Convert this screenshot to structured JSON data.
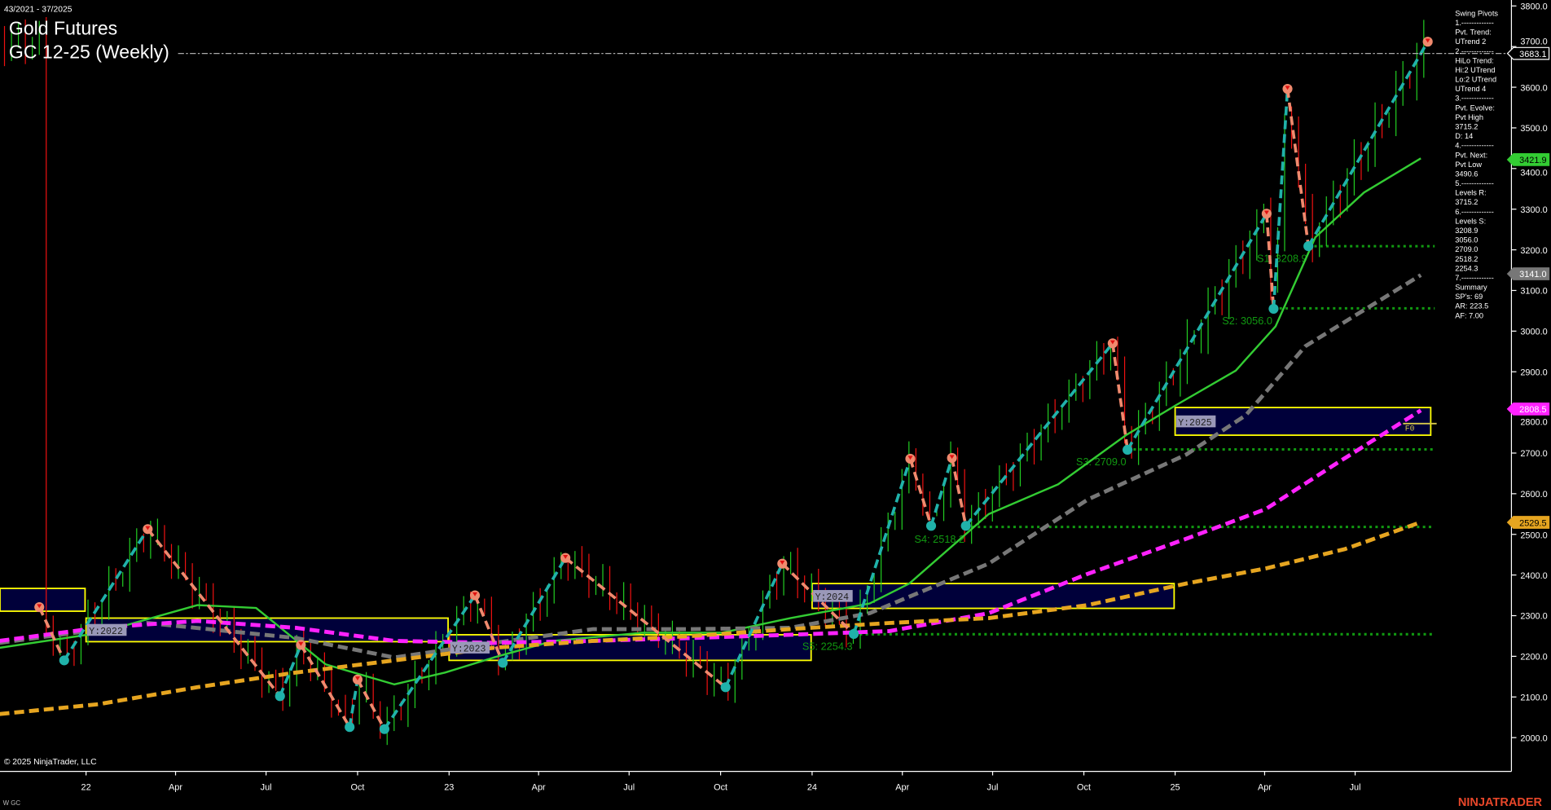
{
  "header": {
    "date_range": "43/2021 - 37/2025",
    "title": "Gold Futures",
    "subtitle": "GC 12-25 (Weekly)"
  },
  "footer": {
    "copyright": "© 2025 NinjaTrader, LLC",
    "instrument_tag": "W GC",
    "logo": "NINJATRADER"
  },
  "swing_panel": [
    "Swing Pivots",
    "1.-------------",
    "Pvt. Trend:",
    "UTrend 2",
    "2.-------------",
    "HiLo Trend:",
    "Hi:2 UTrend",
    "Lo:2 UTrend",
    "UTrend 4",
    "3.-------------",
    "Pvt. Evolve:",
    "Pvt High",
    "3715.2",
    "D: 14",
    "4.-------------",
    "Pvt. Next:",
    "Pvt Low",
    "3490.6",
    "5.-------------",
    "Levels R:",
    "3715.2",
    "6.-------------",
    "Levels S:",
    "3208.9",
    "3056.0",
    "2709.0",
    "2518.2",
    "2254.3",
    "7.-------------",
    "Summary",
    "SP's: 69",
    "AR: 223.5",
    "AF: 7.00"
  ],
  "colors": {
    "background": "#000000",
    "up_bar": "#22cc22",
    "down_bar": "#ee1111",
    "swing_up": "#20b2aa",
    "swing_down": "#f08a6e",
    "ma_fast": "#33cc33",
    "ma_mid": "#777777",
    "ma_slow": "#ff22ff",
    "ma_long": "#e6a520",
    "support": "#119911",
    "year_box_border": "#ffff00",
    "year_box_fill": "#000044",
    "logo": "#e8472a"
  },
  "chart_data": {
    "type": "candlestick",
    "ylim": [
      1920,
      3830
    ],
    "y_ticks": [
      3800,
      3700,
      3600,
      3500,
      3400,
      3300,
      3200,
      3100,
      3000,
      2900,
      2800,
      2700,
      2600,
      2500,
      2400,
      2300,
      2200,
      2100,
      2000
    ],
    "y_tick_labels": [
      "3800.0",
      "3700.0",
      "3600.0",
      "3500.0",
      "3400.0",
      "3300.0",
      "3200.0",
      "3100.0",
      "3000.0",
      "2900.0",
      "2800.0",
      "2700.0",
      "2600.0",
      "2500.0",
      "2400.0",
      "2300.0",
      "2200.0",
      "2100.0",
      "2000.0"
    ],
    "x_range": [
      "2021-10-04",
      "2025-10-20"
    ],
    "x_ticks": [
      {
        "date": "2022-01-01",
        "label": "22"
      },
      {
        "date": "2022-04-01",
        "label": "Apr"
      },
      {
        "date": "2022-07-01",
        "label": "Jul"
      },
      {
        "date": "2022-10-01",
        "label": "Oct"
      },
      {
        "date": "2023-01-01",
        "label": "23"
      },
      {
        "date": "2023-04-01",
        "label": "Apr"
      },
      {
        "date": "2023-07-01",
        "label": "Jul"
      },
      {
        "date": "2023-10-01",
        "label": "Oct"
      },
      {
        "date": "2024-01-01",
        "label": "24"
      },
      {
        "date": "2024-04-01",
        "label": "Apr"
      },
      {
        "date": "2024-07-01",
        "label": "Jul"
      },
      {
        "date": "2024-10-01",
        "label": "Oct"
      },
      {
        "date": "2025-01-01",
        "label": "25"
      },
      {
        "date": "2025-04-01",
        "label": "Apr"
      },
      {
        "date": "2025-07-01",
        "label": "Jul"
      }
    ],
    "last_price_line": 3683.1,
    "price_badges": [
      {
        "value": "3683.1",
        "color": "#000000",
        "text_color": "#ffffff",
        "price": 3683.1
      },
      {
        "value": "3421.9",
        "color": "#33cc33",
        "text_color": "#000000",
        "price": 3421.9
      },
      {
        "value": "3141.0",
        "color": "#777777",
        "text_color": "#ffffff",
        "price": 3141.0
      },
      {
        "value": "2808.5",
        "color": "#ff22ff",
        "text_color": "#ffffff",
        "price": 2808.5
      },
      {
        "value": "2529.5",
        "color": "#e6a520",
        "text_color": "#000000",
        "price": 2529.5
      }
    ],
    "swing_pivots": [
      {
        "date": "2021-11-15",
        "price": 2321,
        "type": "high"
      },
      {
        "date": "2021-12-10",
        "price": 2190,
        "type": "low"
      },
      {
        "date": "2022-03-04",
        "price": 2513,
        "type": "high"
      },
      {
        "date": "2022-07-15",
        "price": 2102,
        "type": "low"
      },
      {
        "date": "2022-08-05",
        "price": 2228,
        "type": "high"
      },
      {
        "date": "2022-09-23",
        "price": 2026,
        "type": "low"
      },
      {
        "date": "2022-10-01",
        "price": 2143,
        "type": "high"
      },
      {
        "date": "2022-10-28",
        "price": 2021,
        "type": "low"
      },
      {
        "date": "2023-01-27",
        "price": 2350,
        "type": "high"
      },
      {
        "date": "2023-02-24",
        "price": 2184,
        "type": "low"
      },
      {
        "date": "2023-04-28",
        "price": 2442,
        "type": "high"
      },
      {
        "date": "2023-10-06",
        "price": 2124,
        "type": "low"
      },
      {
        "date": "2023-12-02",
        "price": 2428,
        "type": "high"
      },
      {
        "date": "2024-02-12",
        "price": 2255,
        "type": "low"
      },
      {
        "date": "2024-04-09",
        "price": 2686,
        "type": "high"
      },
      {
        "date": "2024-04-30",
        "price": 2521,
        "type": "low"
      },
      {
        "date": "2024-05-21",
        "price": 2688,
        "type": "high"
      },
      {
        "date": "2024-06-04",
        "price": 2521,
        "type": "low"
      },
      {
        "date": "2024-10-30",
        "price": 2970,
        "type": "high"
      },
      {
        "date": "2024-11-14",
        "price": 2708,
        "type": "low"
      },
      {
        "date": "2025-04-03",
        "price": 3289,
        "type": "high"
      },
      {
        "date": "2025-04-10",
        "price": 3055,
        "type": "low"
      },
      {
        "date": "2025-04-24",
        "price": 3596,
        "type": "high"
      },
      {
        "date": "2025-05-15",
        "price": 3209,
        "type": "low"
      },
      {
        "date": "2025-09-12",
        "price": 3712,
        "type": "high"
      }
    ],
    "moving_averages": [
      {
        "key": "fast",
        "color": "#33cc33",
        "style": "solid",
        "points": [
          [
            "2021-10-06",
            2221
          ],
          [
            "2022-01-13",
            2257
          ],
          [
            "2022-04-23",
            2326
          ],
          [
            "2022-06-21",
            2319
          ],
          [
            "2022-08-30",
            2180
          ],
          [
            "2022-11-07",
            2131
          ],
          [
            "2022-12-28",
            2160
          ],
          [
            "2023-02-15",
            2197
          ],
          [
            "2023-04-16",
            2238
          ],
          [
            "2023-07-14",
            2258
          ],
          [
            "2023-10-02",
            2258
          ],
          [
            "2023-12-10",
            2294
          ],
          [
            "2024-02-28",
            2330
          ],
          [
            "2024-04-08",
            2379
          ],
          [
            "2024-06-27",
            2550
          ],
          [
            "2024-09-05",
            2623
          ],
          [
            "2024-11-13",
            2745
          ],
          [
            "2025-01-02",
            2818
          ],
          [
            "2025-03-03",
            2903
          ],
          [
            "2025-04-12",
            3012
          ],
          [
            "2025-05-22",
            3231
          ],
          [
            "2025-07-10",
            3341
          ],
          [
            "2025-09-05",
            3425
          ]
        ]
      },
      {
        "key": "mid",
        "color": "#777777",
        "style": "dashed",
        "points": [
          [
            "2021-10-06",
            2233
          ],
          [
            "2022-03-04",
            2282
          ],
          [
            "2022-07-31",
            2245
          ],
          [
            "2022-11-07",
            2197
          ],
          [
            "2023-02-15",
            2233
          ],
          [
            "2023-05-26",
            2267
          ],
          [
            "2023-09-02",
            2267
          ],
          [
            "2023-12-10",
            2270
          ],
          [
            "2024-02-28",
            2306
          ],
          [
            "2024-06-27",
            2428
          ],
          [
            "2024-10-05",
            2586
          ],
          [
            "2025-01-12",
            2696
          ],
          [
            "2025-03-13",
            2793
          ],
          [
            "2025-05-12",
            2963
          ],
          [
            "2025-09-05",
            3138
          ]
        ]
      },
      {
        "key": "slow",
        "color": "#ff22ff",
        "style": "dashed",
        "points": [
          [
            "2021-10-06",
            2238
          ],
          [
            "2022-01-13",
            2270
          ],
          [
            "2022-04-23",
            2287
          ],
          [
            "2022-07-31",
            2270
          ],
          [
            "2022-11-07",
            2238
          ],
          [
            "2023-02-15",
            2233
          ],
          [
            "2023-05-26",
            2238
          ],
          [
            "2023-09-02",
            2245
          ],
          [
            "2023-12-10",
            2253
          ],
          [
            "2024-03-19",
            2262
          ],
          [
            "2024-06-27",
            2306
          ],
          [
            "2024-10-05",
            2403
          ],
          [
            "2025-01-12",
            2489
          ],
          [
            "2025-04-02",
            2562
          ],
          [
            "2025-06-10",
            2671
          ],
          [
            "2025-09-05",
            2805
          ]
        ]
      },
      {
        "key": "long",
        "color": "#e6a520",
        "style": "dashed",
        "points": [
          [
            "2021-10-06",
            2058
          ],
          [
            "2022-01-13",
            2082
          ],
          [
            "2022-04-23",
            2124
          ],
          [
            "2022-07-31",
            2160
          ],
          [
            "2022-11-07",
            2190
          ],
          [
            "2023-02-15",
            2221
          ],
          [
            "2023-05-26",
            2238
          ],
          [
            "2023-09-02",
            2250
          ],
          [
            "2023-12-10",
            2267
          ],
          [
            "2024-03-19",
            2282
          ],
          [
            "2024-06-27",
            2294
          ],
          [
            "2024-10-05",
            2326
          ],
          [
            "2025-01-12",
            2379
          ],
          [
            "2025-04-02",
            2416
          ],
          [
            "2025-06-21",
            2464
          ],
          [
            "2025-09-05",
            2530
          ]
        ]
      }
    ],
    "support_levels": [
      {
        "label": "S1: 3208.9",
        "price": 3208.9,
        "from": "2025-05-15"
      },
      {
        "label": "S2: 3056.0",
        "price": 3056.0,
        "from": "2025-04-10"
      },
      {
        "label": "S3: 2709.0",
        "price": 2709.0,
        "from": "2024-11-14"
      },
      {
        "label": "S4: 2518.2",
        "price": 2518.2,
        "from": "2024-06-04"
      },
      {
        "label": "S5: 2254.3",
        "price": 2254.3,
        "from": "2024-02-12"
      }
    ],
    "support_end": "2025-09-19",
    "year_boxes": [
      {
        "label": "",
        "from": "2021-10-01",
        "to": "2021-12-31",
        "high": 2367,
        "low": 2311
      },
      {
        "label": "Y:2022",
        "from": "2022-01-01",
        "to": "2022-12-31",
        "high": 2294,
        "low": 2236
      },
      {
        "label": "Y:2023",
        "from": "2023-01-01",
        "to": "2023-12-31",
        "high": 2253,
        "low": 2190
      },
      {
        "label": "Y:2024",
        "from": "2024-01-01",
        "to": "2024-12-31",
        "high": 2379,
        "low": 2318
      },
      {
        "label": "Y:2025",
        "from": "2025-01-01",
        "to": "2025-09-15",
        "high": 2812,
        "low": 2744
      }
    ],
    "year_2025_marker": {
      "label": "F0",
      "price": 2775
    }
  }
}
